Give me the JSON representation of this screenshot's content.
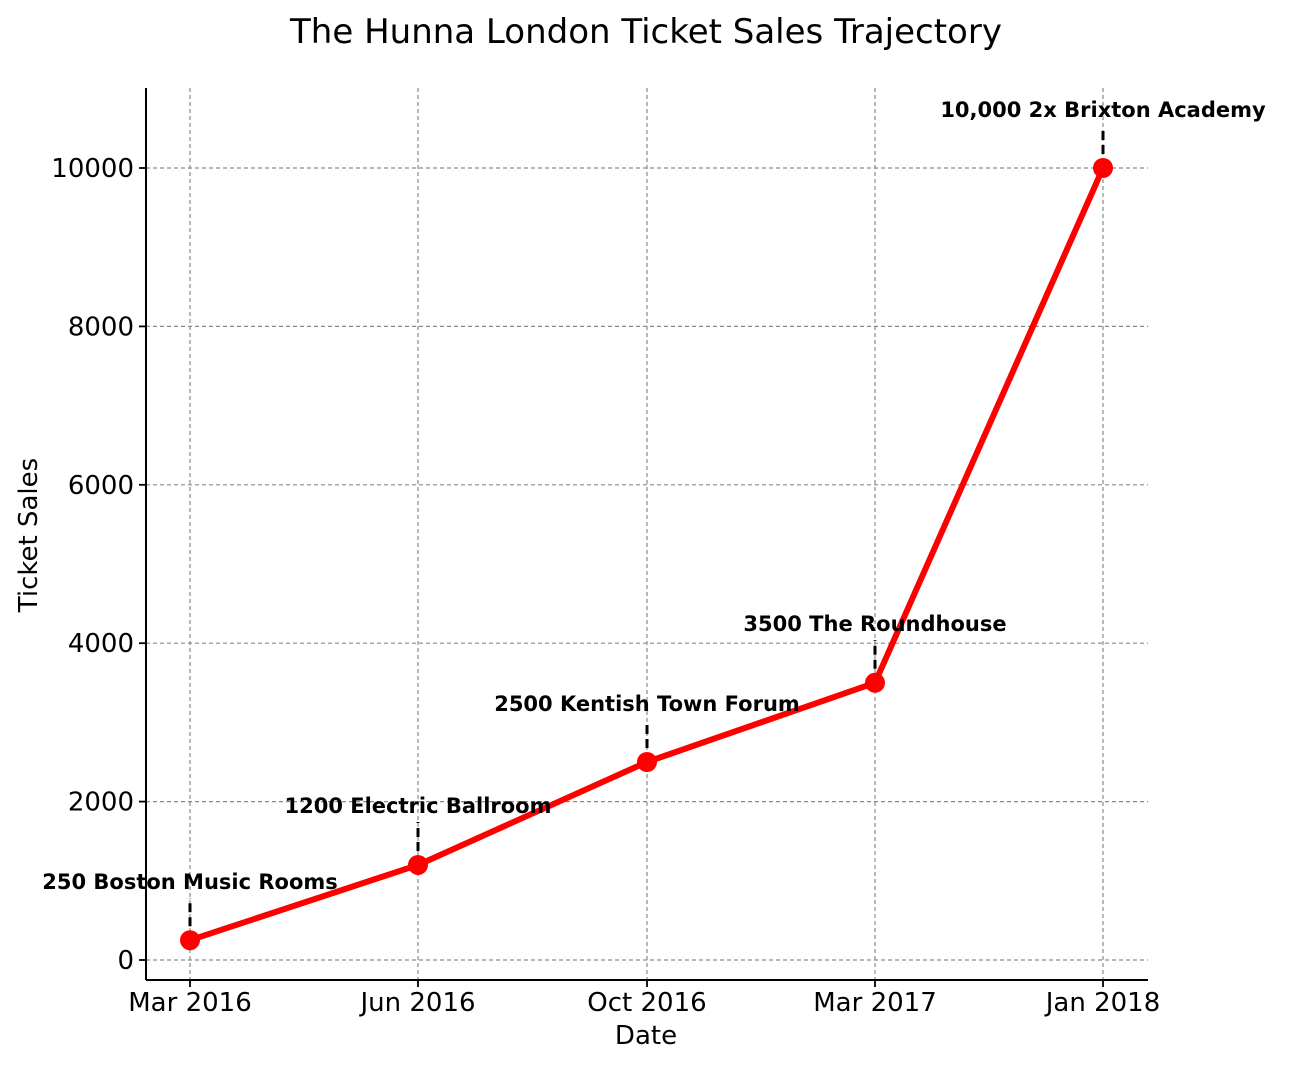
{
  "chart_data": {
    "type": "line",
    "title": "The Hunna London Ticket Sales Trajectory",
    "xlabel": "Date",
    "ylabel": "Ticket Sales",
    "categories": [
      "Mar 2016",
      "Jun 2016",
      "Oct 2016",
      "Mar 2017",
      "Jan 2018"
    ],
    "series": [
      {
        "values": [
          250,
          1200,
          2500,
          3500,
          10000
        ],
        "color": "#ff0000"
      }
    ],
    "annotations": [
      "250 Boston Music Rooms",
      "1200 Electric Ballroom",
      "2500 Kentish Town Forum",
      "3500 The Roundhouse",
      "10,000 2x Brixton Academy"
    ],
    "ylim": [
      -250,
      11000
    ],
    "yticks": [
      0,
      2000,
      4000,
      6000,
      8000,
      10000
    ],
    "grid": true,
    "marker": "circle",
    "annotation_style": "dashed leader line above each point"
  }
}
